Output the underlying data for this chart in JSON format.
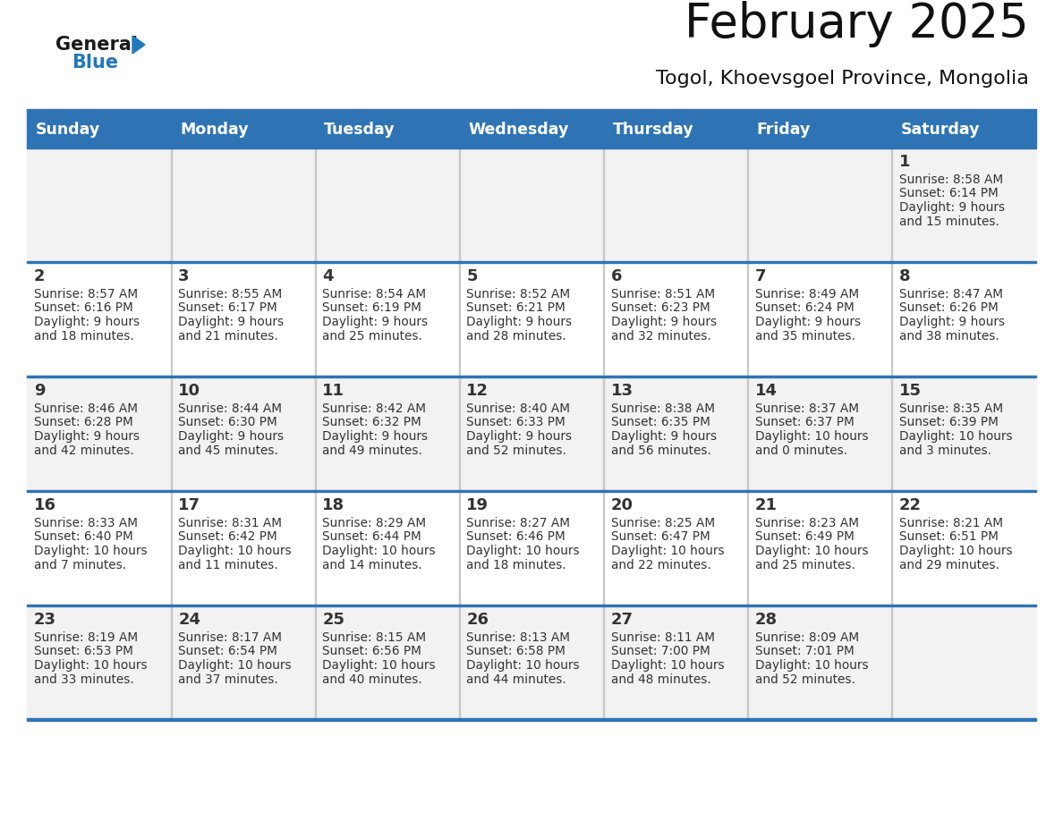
{
  "title": "February 2025",
  "subtitle": "Togol, Khoevsgoel Province, Mongolia",
  "days_of_week": [
    "Sunday",
    "Monday",
    "Tuesday",
    "Wednesday",
    "Thursday",
    "Friday",
    "Saturday"
  ],
  "header_bg": "#2E74B5",
  "header_text": "#FFFFFF",
  "row_bg_odd": "#F2F2F2",
  "row_bg_even": "#FFFFFF",
  "separator_color": "#2E74B5",
  "text_color": "#333333",
  "calendar_data": [
    [
      null,
      null,
      null,
      null,
      null,
      null,
      {
        "day": "1",
        "sunrise": "8:58 AM",
        "sunset": "6:14 PM",
        "dl1": "Daylight: 9 hours",
        "dl2": "and 15 minutes."
      }
    ],
    [
      {
        "day": "2",
        "sunrise": "8:57 AM",
        "sunset": "6:16 PM",
        "dl1": "Daylight: 9 hours",
        "dl2": "and 18 minutes."
      },
      {
        "day": "3",
        "sunrise": "8:55 AM",
        "sunset": "6:17 PM",
        "dl1": "Daylight: 9 hours",
        "dl2": "and 21 minutes."
      },
      {
        "day": "4",
        "sunrise": "8:54 AM",
        "sunset": "6:19 PM",
        "dl1": "Daylight: 9 hours",
        "dl2": "and 25 minutes."
      },
      {
        "day": "5",
        "sunrise": "8:52 AM",
        "sunset": "6:21 PM",
        "dl1": "Daylight: 9 hours",
        "dl2": "and 28 minutes."
      },
      {
        "day": "6",
        "sunrise": "8:51 AM",
        "sunset": "6:23 PM",
        "dl1": "Daylight: 9 hours",
        "dl2": "and 32 minutes."
      },
      {
        "day": "7",
        "sunrise": "8:49 AM",
        "sunset": "6:24 PM",
        "dl1": "Daylight: 9 hours",
        "dl2": "and 35 minutes."
      },
      {
        "day": "8",
        "sunrise": "8:47 AM",
        "sunset": "6:26 PM",
        "dl1": "Daylight: 9 hours",
        "dl2": "and 38 minutes."
      }
    ],
    [
      {
        "day": "9",
        "sunrise": "8:46 AM",
        "sunset": "6:28 PM",
        "dl1": "Daylight: 9 hours",
        "dl2": "and 42 minutes."
      },
      {
        "day": "10",
        "sunrise": "8:44 AM",
        "sunset": "6:30 PM",
        "dl1": "Daylight: 9 hours",
        "dl2": "and 45 minutes."
      },
      {
        "day": "11",
        "sunrise": "8:42 AM",
        "sunset": "6:32 PM",
        "dl1": "Daylight: 9 hours",
        "dl2": "and 49 minutes."
      },
      {
        "day": "12",
        "sunrise": "8:40 AM",
        "sunset": "6:33 PM",
        "dl1": "Daylight: 9 hours",
        "dl2": "and 52 minutes."
      },
      {
        "day": "13",
        "sunrise": "8:38 AM",
        "sunset": "6:35 PM",
        "dl1": "Daylight: 9 hours",
        "dl2": "and 56 minutes."
      },
      {
        "day": "14",
        "sunrise": "8:37 AM",
        "sunset": "6:37 PM",
        "dl1": "Daylight: 10 hours",
        "dl2": "and 0 minutes."
      },
      {
        "day": "15",
        "sunrise": "8:35 AM",
        "sunset": "6:39 PM",
        "dl1": "Daylight: 10 hours",
        "dl2": "and 3 minutes."
      }
    ],
    [
      {
        "day": "16",
        "sunrise": "8:33 AM",
        "sunset": "6:40 PM",
        "dl1": "Daylight: 10 hours",
        "dl2": "and 7 minutes."
      },
      {
        "day": "17",
        "sunrise": "8:31 AM",
        "sunset": "6:42 PM",
        "dl1": "Daylight: 10 hours",
        "dl2": "and 11 minutes."
      },
      {
        "day": "18",
        "sunrise": "8:29 AM",
        "sunset": "6:44 PM",
        "dl1": "Daylight: 10 hours",
        "dl2": "and 14 minutes."
      },
      {
        "day": "19",
        "sunrise": "8:27 AM",
        "sunset": "6:46 PM",
        "dl1": "Daylight: 10 hours",
        "dl2": "and 18 minutes."
      },
      {
        "day": "20",
        "sunrise": "8:25 AM",
        "sunset": "6:47 PM",
        "dl1": "Daylight: 10 hours",
        "dl2": "and 22 minutes."
      },
      {
        "day": "21",
        "sunrise": "8:23 AM",
        "sunset": "6:49 PM",
        "dl1": "Daylight: 10 hours",
        "dl2": "and 25 minutes."
      },
      {
        "day": "22",
        "sunrise": "8:21 AM",
        "sunset": "6:51 PM",
        "dl1": "Daylight: 10 hours",
        "dl2": "and 29 minutes."
      }
    ],
    [
      {
        "day": "23",
        "sunrise": "8:19 AM",
        "sunset": "6:53 PM",
        "dl1": "Daylight: 10 hours",
        "dl2": "and 33 minutes."
      },
      {
        "day": "24",
        "sunrise": "8:17 AM",
        "sunset": "6:54 PM",
        "dl1": "Daylight: 10 hours",
        "dl2": "and 37 minutes."
      },
      {
        "day": "25",
        "sunrise": "8:15 AM",
        "sunset": "6:56 PM",
        "dl1": "Daylight: 10 hours",
        "dl2": "and 40 minutes."
      },
      {
        "day": "26",
        "sunrise": "8:13 AM",
        "sunset": "6:58 PM",
        "dl1": "Daylight: 10 hours",
        "dl2": "and 44 minutes."
      },
      {
        "day": "27",
        "sunrise": "8:11 AM",
        "sunset": "7:00 PM",
        "dl1": "Daylight: 10 hours",
        "dl2": "and 48 minutes."
      },
      {
        "day": "28",
        "sunrise": "8:09 AM",
        "sunset": "7:01 PM",
        "dl1": "Daylight: 10 hours",
        "dl2": "and 52 minutes."
      },
      null
    ]
  ],
  "logo_general_color": "#1a1a1a",
  "logo_blue_color": "#2277BB",
  "logo_triangle_color": "#2277BB"
}
